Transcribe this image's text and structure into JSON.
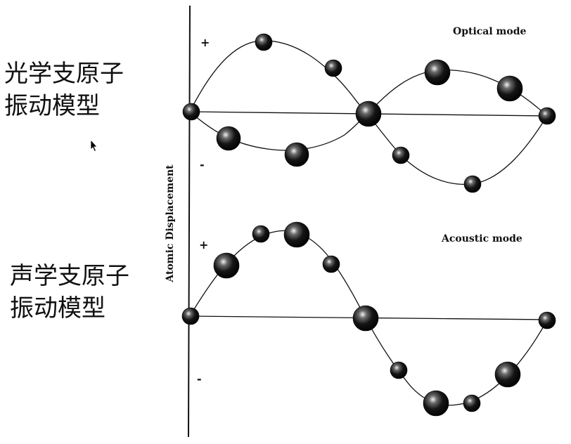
{
  "labels": {
    "optical_cn": "光学支原子\n振动模型",
    "acoustic_cn": "声学支原子\n振动模型"
  },
  "diagram": {
    "y_axis_label": "Atomic Displacement",
    "optical_mode_title": "Optical mode",
    "acoustic_mode_title": "Acoustic mode",
    "plus_sign": "+",
    "minus_sign": "-"
  },
  "colors": {
    "ink": "#111111",
    "atom_dark": "#050505",
    "atom_highlight": "#f2f2f2"
  }
}
